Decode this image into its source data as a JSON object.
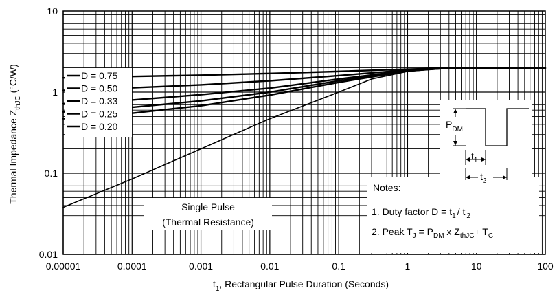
{
  "chart_data": {
    "type": "line",
    "xlabel_main": "t",
    "xlabel_sub": "1",
    "xlabel_rest": ", Rectangular Pulse Duration (Seconds)",
    "ylabel_main": "Thermal Impedance Z",
    "ylabel_sub": "thJC",
    "ylabel_rest": " (°C/W)",
    "x_scale": "log",
    "y_scale": "log",
    "xlim": [
      1e-05,
      100
    ],
    "ylim": [
      0.01,
      10
    ],
    "grid": true,
    "x_ticks": [
      "0.00001",
      "0.0001",
      "0.001",
      "0.01",
      "0.1",
      "1",
      "10",
      "100"
    ],
    "y_ticks": [
      "10",
      "1",
      "0.1",
      "0.01"
    ],
    "series": [
      {
        "name": "D = 0.75",
        "x": [
          1e-05,
          0.0001,
          0.001,
          0.01,
          0.1,
          1,
          3,
          10,
          100
        ],
        "y": [
          1.5,
          1.56,
          1.62,
          1.7,
          1.8,
          1.92,
          1.97,
          1.98,
          1.98
        ]
      },
      {
        "name": "D = 0.50",
        "x": [
          1e-05,
          0.0001,
          0.001,
          0.01,
          0.1,
          1,
          3,
          10,
          100
        ],
        "y": [
          1.05,
          1.13,
          1.23,
          1.38,
          1.6,
          1.88,
          1.96,
          1.98,
          1.98
        ]
      },
      {
        "name": "D = 0.33",
        "x": [
          1e-05,
          0.0001,
          0.001,
          0.01,
          0.1,
          1,
          3,
          10,
          100
        ],
        "y": [
          0.72,
          0.8,
          0.93,
          1.12,
          1.45,
          1.85,
          1.95,
          1.98,
          1.98
        ]
      },
      {
        "name": "D = 0.25",
        "x": [
          1e-05,
          0.0001,
          0.001,
          0.01,
          0.1,
          1,
          3,
          10,
          100
        ],
        "y": [
          0.57,
          0.65,
          0.78,
          1.0,
          1.38,
          1.83,
          1.95,
          1.98,
          1.98
        ]
      },
      {
        "name": "D = 0.20",
        "x": [
          1e-05,
          0.0001,
          0.001,
          0.01,
          0.1,
          1,
          3,
          10,
          100
        ],
        "y": [
          0.47,
          0.55,
          0.68,
          0.92,
          1.32,
          1.82,
          1.95,
          1.98,
          1.98
        ]
      },
      {
        "name": "Single Pulse (Thermal Resistance)",
        "x": [
          1e-05,
          0.0001,
          0.001,
          0.01,
          0.1,
          0.3,
          1,
          3,
          10,
          100
        ],
        "y": [
          0.038,
          0.085,
          0.2,
          0.47,
          1.0,
          1.45,
          1.8,
          1.95,
          1.98,
          1.98
        ]
      }
    ],
    "legend": [
      "D = 0.75",
      "D = 0.50",
      "D = 0.33",
      "D = 0.25",
      "D = 0.20"
    ],
    "single_pulse_label_1": "Single Pulse",
    "single_pulse_label_2": "(Thermal Resistance)",
    "notes": {
      "title": "Notes:",
      "note1_a": "1. Duty factor D = t",
      "note1_sub1": "1",
      "note1_b": "/ t",
      "note1_sub2": "2",
      "note2_a": "2. Peak T",
      "note2_sub_j": "J",
      "note2_b": " = P",
      "note2_sub_dm": "DM",
      "note2_c": " x Z",
      "note2_sub_thjc": "thJC",
      "note2_d": "+ T",
      "note2_sub_c": "C"
    },
    "waveform": {
      "pdm_main": "P",
      "pdm_sub": "DM",
      "t1_main": "t",
      "t1_sub": "1",
      "t2_main": "t",
      "t2_sub": "2"
    }
  }
}
